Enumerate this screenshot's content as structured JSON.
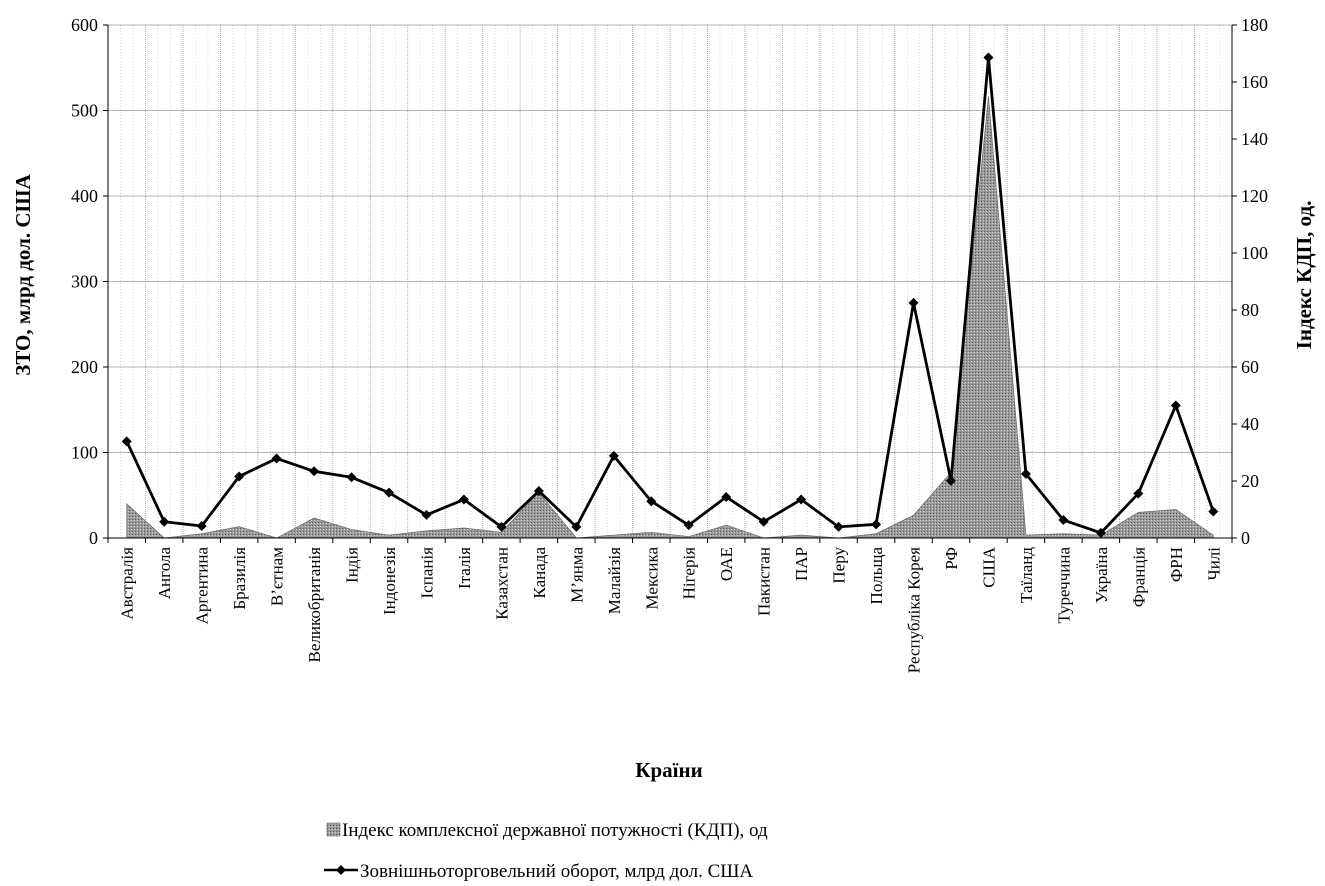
{
  "chart_data": {
    "type": "line",
    "xlabel": "Країни",
    "ylabel_left": "ЗТО, млрд дол. США",
    "ylabel_right": "Індекс КДП, од.",
    "ylim_left": [
      0,
      600
    ],
    "ylim_right": [
      0,
      180
    ],
    "yticks_left": [
      "0",
      "100",
      "200",
      "300",
      "400",
      "500",
      "600"
    ],
    "yticks_right": [
      "0",
      "20",
      "40",
      "60",
      "80",
      "100",
      "120",
      "140",
      "160",
      "180"
    ],
    "grid": true,
    "legend_position": "bottom",
    "categories": [
      "Австралія",
      "Ангола",
      "Аргентина",
      "Бразилія",
      "В’єтнам",
      "Великобританія",
      "Індія",
      "Індонезія",
      "Іспанія",
      "Італія",
      "Казахстан",
      "Канада",
      "М’янма",
      "Малайзія",
      "Мексика",
      "Нігерія",
      "ОАЕ",
      "Пакистан",
      "ПАР",
      "Перу",
      "Польща",
      "Республіка Корея",
      "РФ",
      "США",
      "Таїланд",
      "Туреччина",
      "Україна",
      "Франція",
      "ФРН",
      "Чилі"
    ],
    "series": [
      {
        "name": "Індекс комплексної державної потужності (КДП), од",
        "kind": "area",
        "axis": "right",
        "color": "#8c8c8c",
        "values": [
          12,
          0,
          1.5,
          4,
          0,
          7,
          3,
          1,
          2.5,
          3.5,
          2,
          16,
          0,
          1,
          2,
          0.5,
          4.5,
          0,
          1,
          0,
          1.5,
          8,
          23,
          155,
          1,
          1.5,
          1,
          9,
          10,
          1
        ]
      },
      {
        "name": "Зовнішньоторговельний оборот, млрд дол. США",
        "kind": "line",
        "axis": "left",
        "color": "#000000",
        "values": [
          113,
          19,
          14,
          72,
          93,
          78,
          71,
          53,
          27,
          45,
          13,
          55,
          13,
          96,
          43,
          15,
          48,
          19,
          45,
          13,
          16,
          275,
          67,
          562,
          75,
          21,
          6,
          52,
          155,
          31
        ]
      }
    ]
  }
}
